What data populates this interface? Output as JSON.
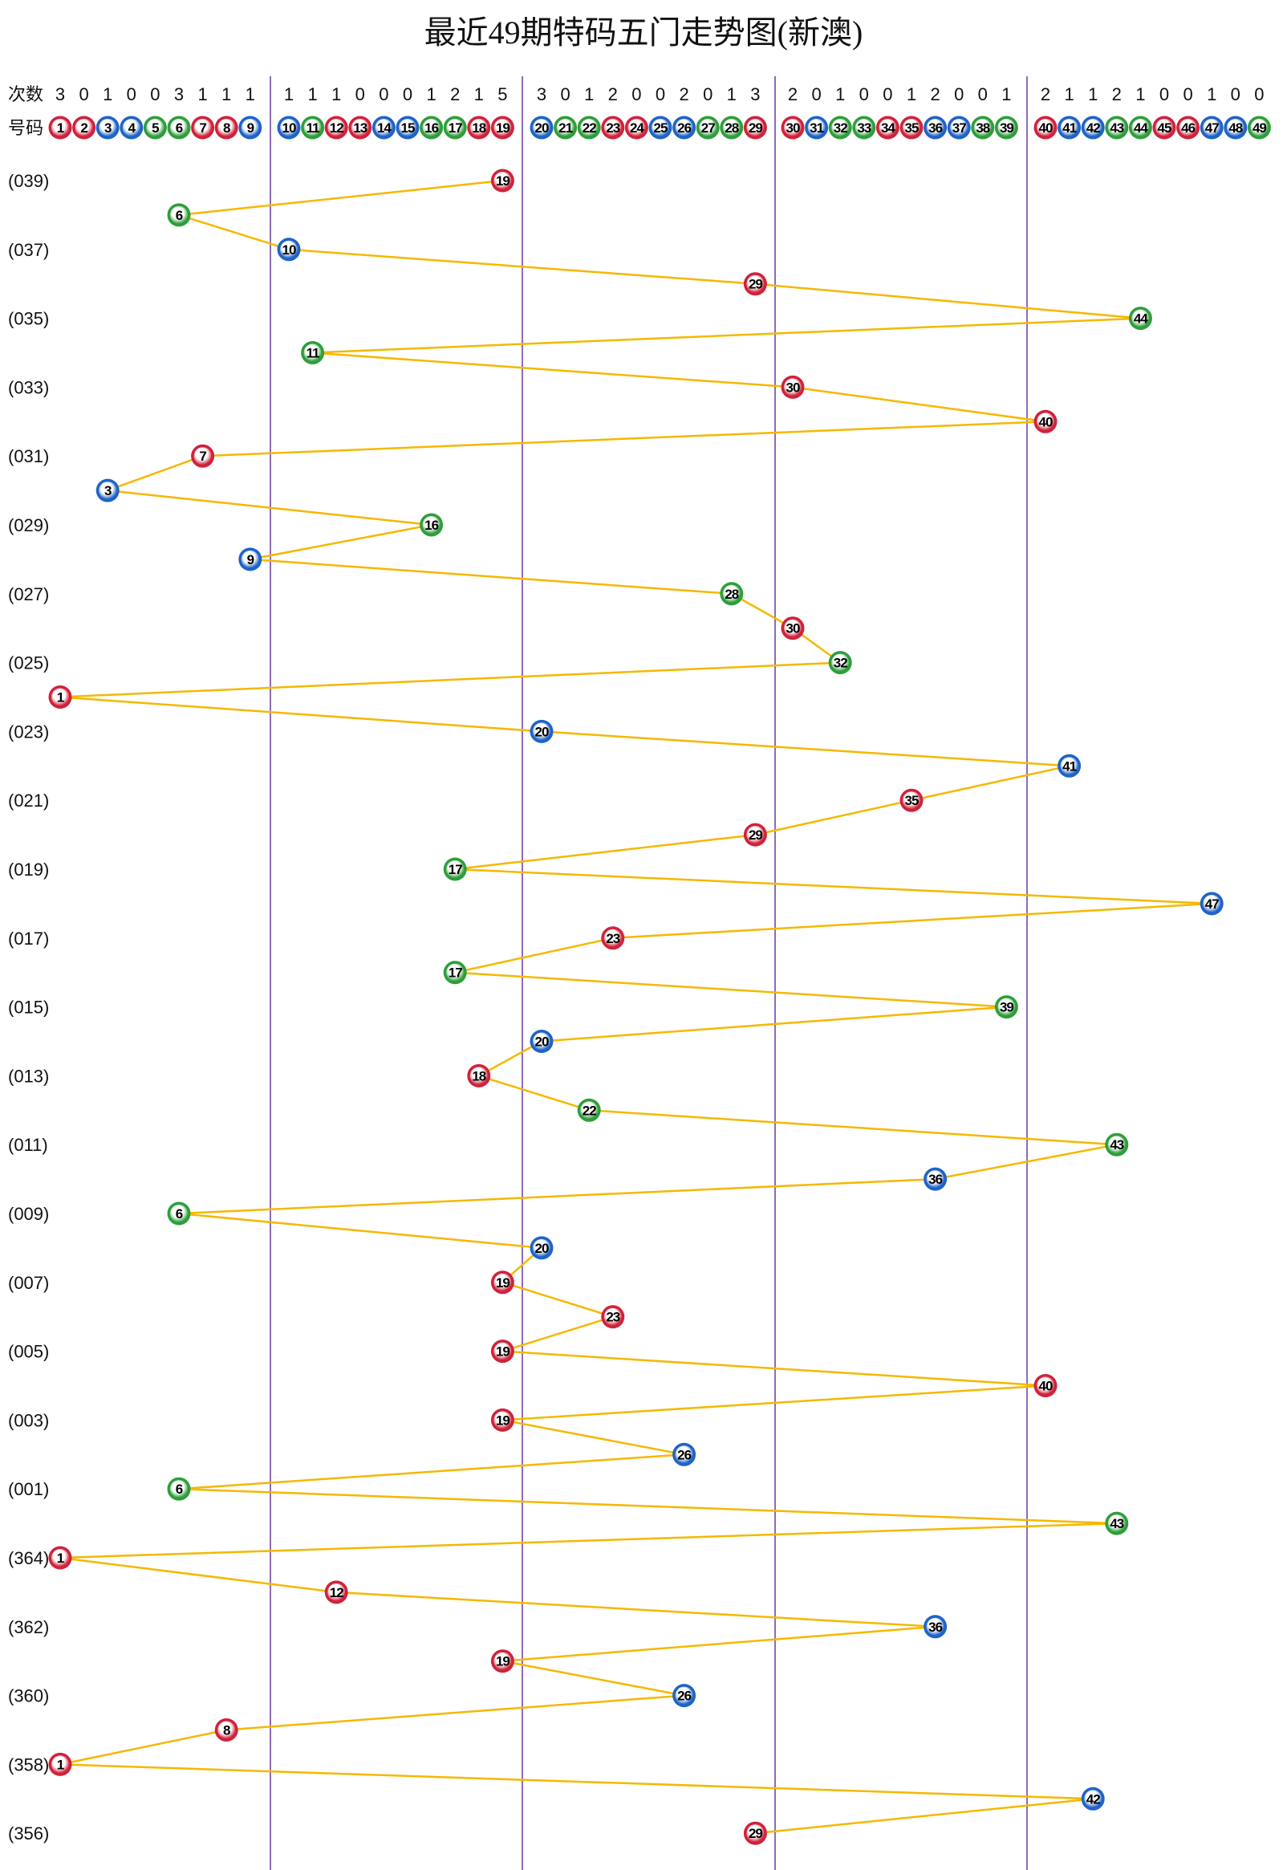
{
  "chart_data": {
    "type": "line",
    "title": "最近49期特码五门走势图(新澳)",
    "count_label": "次数",
    "number_label": "号码",
    "numbers": [
      1,
      2,
      3,
      4,
      5,
      6,
      7,
      8,
      9,
      10,
      11,
      12,
      13,
      14,
      15,
      16,
      17,
      18,
      19,
      20,
      21,
      22,
      23,
      24,
      25,
      26,
      27,
      28,
      29,
      30,
      31,
      32,
      33,
      34,
      35,
      36,
      37,
      38,
      39,
      40,
      41,
      42,
      43,
      44,
      45,
      46,
      47,
      48,
      49
    ],
    "counts": [
      3,
      0,
      1,
      0,
      0,
      3,
      1,
      1,
      1,
      1,
      1,
      1,
      0,
      0,
      0,
      1,
      2,
      1,
      5,
      3,
      0,
      1,
      2,
      0,
      0,
      2,
      0,
      1,
      3,
      2,
      0,
      1,
      0,
      0,
      1,
      2,
      0,
      0,
      1,
      2,
      1,
      1,
      2,
      1,
      0,
      0,
      1,
      0,
      0
    ],
    "groups": [
      [
        1,
        9
      ],
      [
        10,
        19
      ],
      [
        20,
        29
      ],
      [
        30,
        39
      ],
      [
        40,
        49
      ]
    ],
    "draws": [
      {
        "label": "(039)",
        "value": 19
      },
      {
        "label": "",
        "value": 6
      },
      {
        "label": "(037)",
        "value": 10
      },
      {
        "label": "",
        "value": 29
      },
      {
        "label": "(035)",
        "value": 44
      },
      {
        "label": "",
        "value": 11
      },
      {
        "label": "(033)",
        "value": 30
      },
      {
        "label": "",
        "value": 40
      },
      {
        "label": "(031)",
        "value": 7
      },
      {
        "label": "",
        "value": 3
      },
      {
        "label": "(029)",
        "value": 16
      },
      {
        "label": "",
        "value": 9
      },
      {
        "label": "(027)",
        "value": 28
      },
      {
        "label": "",
        "value": 30
      },
      {
        "label": "(025)",
        "value": 32
      },
      {
        "label": "",
        "value": 1
      },
      {
        "label": "(023)",
        "value": 20
      },
      {
        "label": "",
        "value": 41
      },
      {
        "label": "(021)",
        "value": 35
      },
      {
        "label": "",
        "value": 29
      },
      {
        "label": "(019)",
        "value": 17
      },
      {
        "label": "",
        "value": 47
      },
      {
        "label": "(017)",
        "value": 23
      },
      {
        "label": "",
        "value": 17
      },
      {
        "label": "(015)",
        "value": 39
      },
      {
        "label": "",
        "value": 20
      },
      {
        "label": "(013)",
        "value": 18
      },
      {
        "label": "",
        "value": 22
      },
      {
        "label": "(011)",
        "value": 43
      },
      {
        "label": "",
        "value": 36
      },
      {
        "label": "(009)",
        "value": 6
      },
      {
        "label": "",
        "value": 20
      },
      {
        "label": "(007)",
        "value": 19
      },
      {
        "label": "",
        "value": 23
      },
      {
        "label": "(005)",
        "value": 19
      },
      {
        "label": "",
        "value": 40
      },
      {
        "label": "(003)",
        "value": 19
      },
      {
        "label": "",
        "value": 26
      },
      {
        "label": "(001)",
        "value": 6
      },
      {
        "label": "",
        "value": 43
      },
      {
        "label": "(364)",
        "value": 1
      },
      {
        "label": "",
        "value": 12
      },
      {
        "label": "(362)",
        "value": 36
      },
      {
        "label": "",
        "value": 19
      },
      {
        "label": "(360)",
        "value": 26
      },
      {
        "label": "",
        "value": 8
      },
      {
        "label": "(358)",
        "value": 1
      },
      {
        "label": "",
        "value": 42
      },
      {
        "label": "(356)",
        "value": 29
      }
    ],
    "wave_colors": {
      "red": [
        1,
        2,
        7,
        8,
        12,
        13,
        18,
        19,
        23,
        24,
        29,
        30,
        34,
        35,
        40,
        45,
        46
      ],
      "blue": [
        3,
        4,
        9,
        10,
        14,
        15,
        20,
        25,
        26,
        31,
        36,
        37,
        41,
        42,
        47,
        48
      ],
      "green": [
        5,
        6,
        11,
        16,
        17,
        21,
        22,
        27,
        28,
        32,
        33,
        38,
        39,
        43,
        44,
        49
      ]
    },
    "colors": {
      "red": "#d0223a",
      "blue": "#1e63c8",
      "green": "#2e9e3a",
      "line": "#f5b800",
      "separator": "#6a3aa0"
    }
  }
}
